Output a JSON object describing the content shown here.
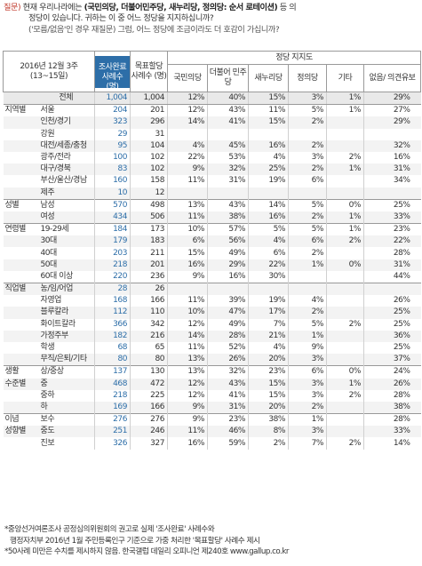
{
  "question": {
    "label": "질문)",
    "text_a": "현재 우리나라에는 ",
    "parties_bold": "(국민의당, 더불어민주당, 새누리당, 정의당: 순서 로테이션)",
    "text_b": " 등 의",
    "line2": "정당이 있습니다. 귀하는 이 중 어느 정당을 지지하십니까?",
    "line3": "('모름/없음'인 경우 재질문) 그럼, 어느 정당에 조금이라도 더 호감이 가십니까?"
  },
  "header": {
    "survey_period": "2016년 12월 3주",
    "survey_dates": "(13~15일)",
    "col_sample_done": "조사완료 사례수 (명)",
    "col_sample_target": "목표할당 사례수 (명)",
    "group_title": "정당 지지도",
    "parties": [
      "국민의당",
      "더불어 민주당",
      "새누리당",
      "정의당",
      "기타",
      "없음/ 의견유보"
    ]
  },
  "rows": [
    {
      "group": "",
      "sub": "전체",
      "n1": "1,004",
      "n2": "1,004",
      "v": [
        "12%",
        "40%",
        "15%",
        "3%",
        "1%",
        "29%"
      ],
      "total": true
    },
    {
      "group": "지역별",
      "sub": "서울",
      "n1": "204",
      "n2": "201",
      "v": [
        "12%",
        "43%",
        "11%",
        "5%",
        "1%",
        "27%"
      ],
      "gs": true
    },
    {
      "group": "",
      "sub": "인천/경기",
      "n1": "323",
      "n2": "296",
      "v": [
        "14%",
        "41%",
        "15%",
        "2%",
        "",
        "29%"
      ]
    },
    {
      "group": "",
      "sub": "강원",
      "n1": "29",
      "n2": "31",
      "v": [
        "",
        "",
        "",
        "",
        "",
        ""
      ]
    },
    {
      "group": "",
      "sub": "대전/세종/충청",
      "n1": "95",
      "n2": "104",
      "v": [
        "4%",
        "45%",
        "16%",
        "2%",
        "",
        "32%"
      ]
    },
    {
      "group": "",
      "sub": "광주/전라",
      "n1": "100",
      "n2": "102",
      "v": [
        "22%",
        "53%",
        "4%",
        "3%",
        "2%",
        "16%"
      ]
    },
    {
      "group": "",
      "sub": "대구/경북",
      "n1": "83",
      "n2": "102",
      "v": [
        "9%",
        "32%",
        "25%",
        "2%",
        "1%",
        "31%"
      ]
    },
    {
      "group": "",
      "sub": "부산/울산/경남",
      "n1": "160",
      "n2": "158",
      "v": [
        "11%",
        "31%",
        "19%",
        "6%",
        "",
        "34%"
      ]
    },
    {
      "group": "",
      "sub": "제주",
      "n1": "10",
      "n2": "12",
      "v": [
        "",
        "",
        "",
        "",
        "",
        ""
      ]
    },
    {
      "group": "성별",
      "sub": "남성",
      "n1": "570",
      "n2": "498",
      "v": [
        "13%",
        "43%",
        "14%",
        "5%",
        "0%",
        "25%"
      ],
      "gs": true
    },
    {
      "group": "",
      "sub": "여성",
      "n1": "434",
      "n2": "506",
      "v": [
        "11%",
        "38%",
        "16%",
        "2%",
        "1%",
        "33%"
      ]
    },
    {
      "group": "연령별",
      "sub": "19-29세",
      "n1": "184",
      "n2": "173",
      "v": [
        "10%",
        "57%",
        "5%",
        "5%",
        "1%",
        "23%"
      ],
      "gs": true
    },
    {
      "group": "",
      "sub": "30대",
      "n1": "179",
      "n2": "183",
      "v": [
        "6%",
        "56%",
        "4%",
        "6%",
        "2%",
        "22%"
      ]
    },
    {
      "group": "",
      "sub": "40대",
      "n1": "203",
      "n2": "211",
      "v": [
        "15%",
        "49%",
        "6%",
        "2%",
        "",
        "28%"
      ]
    },
    {
      "group": "",
      "sub": "50대",
      "n1": "218",
      "n2": "201",
      "v": [
        "16%",
        "29%",
        "22%",
        "1%",
        "0%",
        "31%"
      ]
    },
    {
      "group": "",
      "sub": "60대 이상",
      "n1": "220",
      "n2": "236",
      "v": [
        "9%",
        "16%",
        "30%",
        "",
        "",
        "44%"
      ]
    },
    {
      "group": "직업별",
      "sub": "농/임/어업",
      "n1": "28",
      "n2": "26",
      "v": [
        "",
        "",
        "",
        "",
        "",
        ""
      ],
      "gs": true
    },
    {
      "group": "",
      "sub": "자영업",
      "n1": "168",
      "n2": "166",
      "v": [
        "11%",
        "39%",
        "19%",
        "4%",
        "",
        "26%"
      ]
    },
    {
      "group": "",
      "sub": "블루칼라",
      "n1": "112",
      "n2": "110",
      "v": [
        "10%",
        "47%",
        "17%",
        "2%",
        "",
        "25%"
      ]
    },
    {
      "group": "",
      "sub": "화이트칼라",
      "n1": "366",
      "n2": "342",
      "v": [
        "12%",
        "49%",
        "7%",
        "5%",
        "2%",
        "25%"
      ]
    },
    {
      "group": "",
      "sub": "가정주부",
      "n1": "182",
      "n2": "216",
      "v": [
        "14%",
        "28%",
        "21%",
        "1%",
        "",
        "36%"
      ]
    },
    {
      "group": "",
      "sub": "학생",
      "n1": "68",
      "n2": "65",
      "v": [
        "11%",
        "52%",
        "4%",
        "9%",
        "",
        "25%"
      ]
    },
    {
      "group": "",
      "sub": "무직/은퇴/기타",
      "n1": "80",
      "n2": "80",
      "v": [
        "13%",
        "26%",
        "20%",
        "3%",
        "",
        "37%"
      ]
    },
    {
      "group": "생활",
      "sub": "상/중상",
      "n1": "137",
      "n2": "130",
      "v": [
        "13%",
        "32%",
        "23%",
        "6%",
        "0%",
        "24%"
      ],
      "gs": true
    },
    {
      "group": "수준별",
      "sub": "중",
      "n1": "468",
      "n2": "472",
      "v": [
        "12%",
        "43%",
        "15%",
        "3%",
        "1%",
        "26%"
      ]
    },
    {
      "group": "",
      "sub": "중하",
      "n1": "218",
      "n2": "225",
      "v": [
        "12%",
        "41%",
        "15%",
        "3%",
        "2%",
        "28%"
      ]
    },
    {
      "group": "",
      "sub": "하",
      "n1": "169",
      "n2": "166",
      "v": [
        "9%",
        "31%",
        "20%",
        "2%",
        "",
        "38%"
      ]
    },
    {
      "group": "이념",
      "sub": "보수",
      "n1": "276",
      "n2": "276",
      "v": [
        "9%",
        "23%",
        "38%",
        "1%",
        "",
        "28%"
      ],
      "gs": true
    },
    {
      "group": "성향별",
      "sub": "중도",
      "n1": "251",
      "n2": "246",
      "v": [
        "11%",
        "46%",
        "8%",
        "3%",
        "",
        "33%"
      ]
    },
    {
      "group": "",
      "sub": "진보",
      "n1": "326",
      "n2": "327",
      "v": [
        "16%",
        "59%",
        "2%",
        "7%",
        "2%",
        "14%"
      ]
    }
  ],
  "footnotes": [
    "*중앙선거여론조사 공정심의위원회의 권고로 실제 '조사완료' 사례수와",
    "행정자치부 2016년 1월 주민등록인구 기준으로 가중 처리한 '목표할당' 사례수 제시",
    "*50사례 미만은 수치를 제시하지 않음. 한국갤럽 데일리 오피니언 제240호 www.gallup.co.kr"
  ]
}
